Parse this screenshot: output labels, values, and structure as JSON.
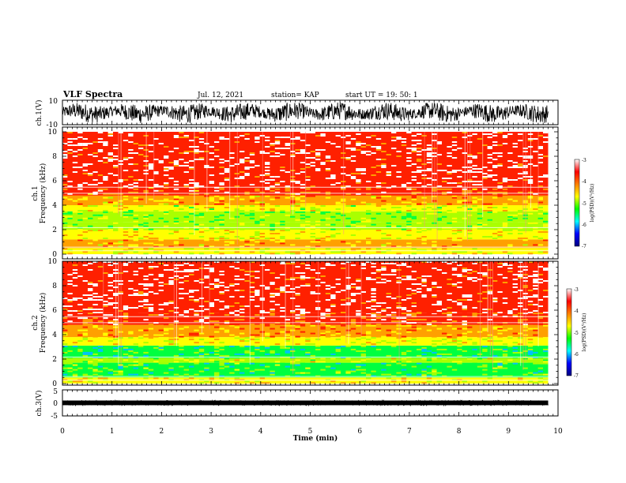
{
  "header": {
    "title": "VLF Spectra",
    "date": "Jul. 12, 2021",
    "station": "station= KAP",
    "start": "start UT = 19: 50: 1"
  },
  "colors": {
    "spectrogram_stops": [
      "#00007a",
      "#0000ff",
      "#00c0ff",
      "#00ff40",
      "#aaff00",
      "#ffff00",
      "#ffa000",
      "#ff2000",
      "#ffffff"
    ],
    "colorbar_stops": [
      "#000080",
      "#0000ff",
      "#00ffff",
      "#00ff00",
      "#ffff00",
      "#ff8000",
      "#ff0000",
      "#ffffff"
    ]
  },
  "chart_data": [
    {
      "type": "line",
      "ylabel": "ch.1(V)",
      "ylim": [
        -10,
        10
      ],
      "yticks": [
        "10",
        "-10"
      ],
      "description_level": "noisy waveform, amplitude approx. ±8 V",
      "xlim": [
        0,
        10
      ]
    },
    {
      "type": "heatmap",
      "ylabel": "ch.1\nFrequency (kHz)",
      "ylabel_line1": "ch.1",
      "ylabel_line2": "Frequency (kHz)",
      "ylim": [
        0,
        10
      ],
      "yticks": [
        "0",
        "2",
        "4",
        "6",
        "8",
        "10"
      ],
      "xlim": [
        0,
        9.8
      ],
      "colorbar": {
        "label": "log(PSD)(V²/Hz)",
        "range": [
          -7,
          -3
        ],
        "ticks": [
          "-3",
          "-4",
          "-5",
          "-6",
          "-7"
        ]
      },
      "band_levels_by_khz": [
        {
          "from": 0.0,
          "to": 0.5,
          "level": -4.6
        },
        {
          "from": 0.5,
          "to": 1.2,
          "level": -4.2
        },
        {
          "from": 1.2,
          "to": 2.0,
          "level": -4.6
        },
        {
          "from": 2.0,
          "to": 2.6,
          "level": -4.9
        },
        {
          "from": 2.6,
          "to": 3.5,
          "level": -5.1
        },
        {
          "from": 3.5,
          "to": 4.0,
          "level": -4.7
        },
        {
          "from": 4.0,
          "to": 4.8,
          "level": -4.2
        },
        {
          "from": 4.8,
          "to": 5.5,
          "level": -3.7
        },
        {
          "from": 5.5,
          "to": 10.0,
          "level": -3.3
        }
      ]
    },
    {
      "type": "heatmap",
      "ylabel": "ch.2\nFrequency (kHz)",
      "ylabel_line1": "ch.2",
      "ylabel_line2": "Frequency (kHz)",
      "ylim": [
        0,
        10
      ],
      "yticks": [
        "0",
        "2",
        "4",
        "6",
        "8",
        "10"
      ],
      "xlim": [
        0,
        9.8
      ],
      "colorbar": {
        "label": "log(PSD)(V²/Hz)",
        "range": [
          -7,
          -3
        ],
        "ticks": [
          "-3",
          "-4",
          "-5",
          "-6",
          "-7"
        ]
      },
      "band_levels_by_khz": [
        {
          "from": 0.0,
          "to": 0.5,
          "level": -4.5
        },
        {
          "from": 0.5,
          "to": 1.7,
          "level": -5.3
        },
        {
          "from": 1.7,
          "to": 2.1,
          "level": -4.8
        },
        {
          "from": 2.1,
          "to": 3.1,
          "level": -5.4
        },
        {
          "from": 3.1,
          "to": 3.8,
          "level": -4.6
        },
        {
          "from": 3.8,
          "to": 4.8,
          "level": -4.1
        },
        {
          "from": 4.8,
          "to": 5.8,
          "level": -3.6
        },
        {
          "from": 5.8,
          "to": 10.0,
          "level": -3.3
        }
      ]
    },
    {
      "type": "line",
      "ylabel": "ch.3(V)",
      "ylim": [
        -5,
        5
      ],
      "yticks": [
        "5",
        "0",
        "-5"
      ],
      "description_level": "narrow band around 0 V",
      "xlabel": "Time (min)",
      "xlim": [
        0,
        10
      ],
      "xticks": [
        "0",
        "1",
        "2",
        "3",
        "4",
        "5",
        "6",
        "7",
        "8",
        "9",
        "10"
      ]
    }
  ]
}
